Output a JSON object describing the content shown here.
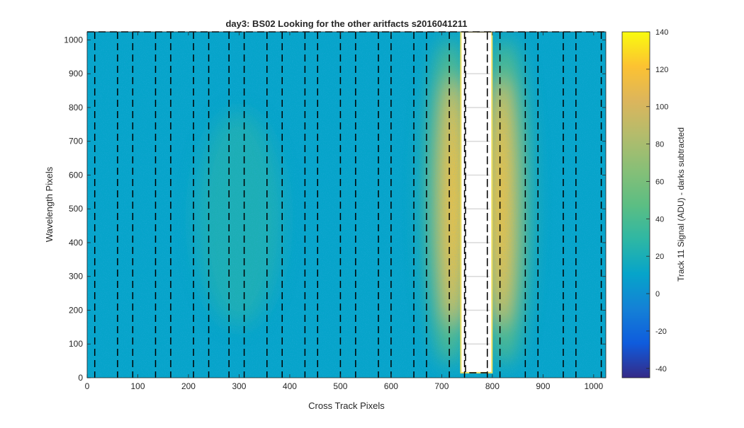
{
  "chart_data": {
    "type": "heatmap",
    "title": "day3: BS02  Looking for the other aritfacts  s2016041211",
    "xlabel": "Cross Track Pixels",
    "ylabel": "Wavelength Pixels",
    "xlim": [
      0,
      1024
    ],
    "ylim": [
      0,
      1024
    ],
    "xticks": [
      0,
      100,
      200,
      300,
      400,
      500,
      600,
      700,
      800,
      900,
      1000
    ],
    "yticks": [
      0,
      100,
      200,
      300,
      400,
      500,
      600,
      700,
      800,
      900,
      1000
    ],
    "colorbar": {
      "label": "Track 11 Signal (ADU) - darks subtracted",
      "range": [
        -45,
        140
      ],
      "ticks": [
        -40,
        -20,
        0,
        20,
        40,
        60,
        80,
        100,
        120,
        140
      ],
      "colormap": "parula"
    },
    "background_signal_adu": 15,
    "glow_regions": [
      {
        "center_x": 300,
        "center_y": 470,
        "peak_adu": 35
      },
      {
        "center_x": 715,
        "center_y": 520,
        "peak_adu": 120
      },
      {
        "center_x": 825,
        "center_y": 520,
        "peak_adu": 120
      }
    ],
    "saturated_region": {
      "x": [
        742,
        795
      ],
      "y": [
        15,
        1024
      ]
    },
    "dashed_boundaries_x": [
      15,
      60,
      90,
      135,
      165,
      210,
      240,
      280,
      310,
      355,
      385,
      430,
      455,
      500,
      530,
      575,
      600,
      645,
      670,
      715,
      745,
      790,
      815,
      865,
      890,
      940,
      965,
      1015
    ]
  }
}
